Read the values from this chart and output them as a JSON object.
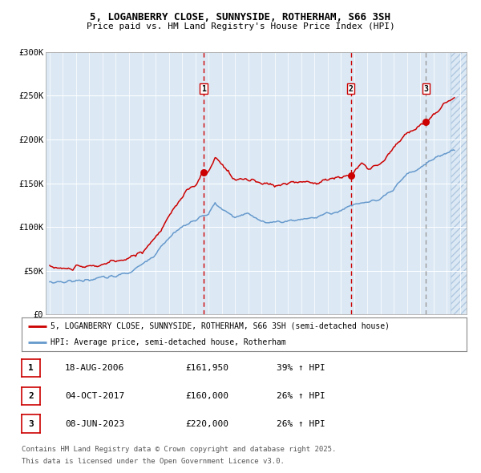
{
  "title": "5, LOGANBERRY CLOSE, SUNNYSIDE, ROTHERHAM, S66 3SH",
  "subtitle": "Price paid vs. HM Land Registry's House Price Index (HPI)",
  "legend_label_red": "5, LOGANBERRY CLOSE, SUNNYSIDE, ROTHERHAM, S66 3SH (semi-detached house)",
  "legend_label_blue": "HPI: Average price, semi-detached house, Rotherham",
  "footer_line1": "Contains HM Land Registry data © Crown copyright and database right 2025.",
  "footer_line2": "This data is licensed under the Open Government Licence v3.0.",
  "transactions": [
    {
      "num": "1",
      "date": "18-AUG-2006",
      "price": "£161,950",
      "hpi_pct": "39% ↑ HPI",
      "x": 2006.63
    },
    {
      "num": "2",
      "date": "04-OCT-2017",
      "price": "£160,000",
      "hpi_pct": "26% ↑ HPI",
      "x": 2017.75
    },
    {
      "num": "3",
      "date": "08-JUN-2023",
      "price": "£220,000",
      "hpi_pct": "26% ↑ HPI",
      "x": 2023.44
    }
  ],
  "ylim": [
    0,
    300000
  ],
  "yticks": [
    0,
    50000,
    100000,
    150000,
    200000,
    250000,
    300000
  ],
  "ytick_labels": [
    "£0",
    "£50K",
    "£100K",
    "£150K",
    "£200K",
    "£250K",
    "£300K"
  ],
  "bg_color": "#dce9f5",
  "grid_color": "#ffffff",
  "red_line_color": "#cc0000",
  "blue_line_color": "#6699cc",
  "dashed_red_color": "#cc0000",
  "dashed_gray_color": "#999999",
  "hatch_bg_color": "#c8daea",
  "xlim_left": 1994.7,
  "xlim_right": 2026.5,
  "hatch_start": 2025.3
}
